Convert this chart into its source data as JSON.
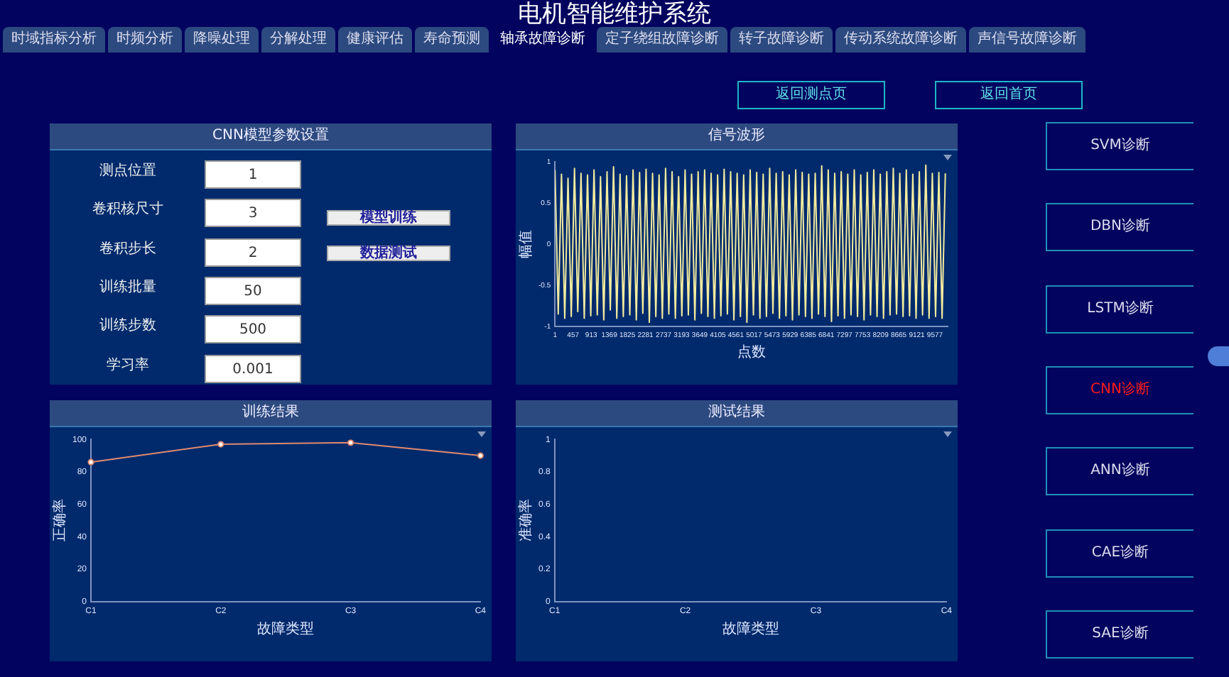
{
  "chart_data": [
    {
      "type": "other",
      "title": "电机智能维护系统",
      "annotations": [
        "时域指标分析",
        "时频分析",
        "降噪处理",
        "分解处理",
        "健康评估",
        "寿命预测",
        "轴承故障诊断",
        "定子绕组故障诊断",
        "转子故障诊断",
        "传动系统故障诊断",
        "声信号故障诊断",
        "返回测点页",
        "返回首页",
        "SVM诊断",
        "DBN诊断",
        "LSTM诊断",
        "CNN诊断",
        "ANN诊断",
        "CAE诊断",
        "SAE诊断"
      ]
    },
    {
      "type": "other",
      "title": "CNN模型参数设置",
      "annotations": [
        "测点位置",
        "1",
        "卷积核尺寸",
        "3",
        "卷积步长",
        "2",
        "训练批量",
        "50",
        "训练步数",
        "500",
        "学习率",
        "0.001",
        "模型训练",
        "数据测试"
      ]
    },
    {
      "type": "line",
      "title": "信号波形",
      "xlabel": "点数",
      "ylabel": "幅值",
      "xlim": [
        1,
        9900
      ],
      "ylim": [
        -1,
        1
      ],
      "xticks": [
        1,
        457,
        913,
        1369,
        1825,
        2281,
        2737,
        3193,
        3649,
        4105,
        4561,
        5017,
        5473,
        5929,
        6385,
        6841,
        7297,
        7753,
        8209,
        8665,
        9121,
        9577
      ],
      "yticks": [
        -1,
        -0.5,
        0,
        0.5,
        1
      ],
      "grid": false,
      "marker": "none",
      "series": [
        {
          "color": "#f3eb9e",
          "x": [
            1,
            83,
            165,
            247,
            329,
            411,
            493,
            575,
            657,
            739,
            821,
            903,
            985,
            1067,
            1149,
            1231,
            1313,
            1395,
            1477,
            1559,
            1641,
            1723,
            1805,
            1887,
            1969,
            2051,
            2133,
            2215,
            2297,
            2379,
            2461,
            2543,
            2625,
            2707,
            2789,
            2871,
            2953,
            3035,
            3117,
            3199,
            3281,
            3363,
            3445,
            3527,
            3609,
            3691,
            3773,
            3855,
            3937,
            4019,
            4101,
            4183,
            4265,
            4347,
            4429,
            4511,
            4593,
            4675,
            4757,
            4839,
            4921,
            5003,
            5085,
            5167,
            5249,
            5331,
            5413,
            5495,
            5577,
            5659,
            5741,
            5823,
            5905,
            5987,
            6069,
            6151,
            6233,
            6315,
            6397,
            6479,
            6561,
            6643,
            6725,
            6807,
            6889,
            6971,
            7053,
            7135,
            7217,
            7299,
            7381,
            7463,
            7545,
            7627,
            7709,
            7791,
            7873,
            7955,
            8037,
            8119,
            8201,
            8283,
            8365,
            8447,
            8529,
            8611,
            8693,
            8775,
            8857,
            8939,
            9021,
            9103,
            9185,
            9267,
            9349,
            9431,
            9513,
            9595,
            9677,
            9759,
            9841
          ],
          "values": [
            0.9,
            -0.85,
            0.85,
            -0.9,
            0.8,
            -0.88,
            0.92,
            -0.82,
            0.86,
            -0.9,
            0.84,
            -0.87,
            0.9,
            -0.86,
            0.82,
            -0.92,
            0.88,
            -0.8,
            0.94,
            -0.9,
            0.85,
            -0.88,
            0.83,
            -0.86,
            0.9,
            -0.92,
            0.87,
            -0.84,
            0.91,
            -0.95,
            0.86,
            -0.88,
            0.84,
            -0.9,
            0.92,
            -0.85,
            0.88,
            -0.9,
            0.82,
            -0.87,
            0.9,
            -0.86,
            0.85,
            -0.92,
            0.88,
            -0.84,
            0.9,
            -0.88,
            0.86,
            -0.9,
            0.84,
            -0.87,
            0.91,
            -0.85,
            0.88,
            -0.92,
            0.86,
            -0.88,
            0.84,
            -0.95,
            0.9,
            -0.86,
            0.87,
            -0.9,
            0.85,
            -0.88,
            0.92,
            -0.84,
            0.86,
            -0.9,
            0.88,
            -0.87,
            0.84,
            -0.92,
            0.9,
            -0.86,
            0.87,
            -0.88,
            0.85,
            -0.9,
            0.86,
            -0.85,
            0.95,
            -0.88,
            0.9,
            -0.94,
            0.86,
            -0.87,
            0.88,
            -0.9,
            0.85,
            -0.86,
            0.9,
            -0.88,
            0.84,
            -0.92,
            0.87,
            -0.86,
            0.9,
            -0.88,
            0.85,
            -0.9,
            0.88,
            -0.86,
            0.92,
            -0.85,
            0.86,
            -0.88,
            0.9,
            -0.87,
            0.85,
            -0.9,
            0.88,
            -0.86,
            0.96,
            -0.9,
            0.86,
            -0.88,
            0.87,
            -0.9,
            0.86
          ]
        }
      ]
    },
    {
      "type": "line",
      "title": "训练结果",
      "xlabel": "故障类型",
      "ylabel": "正确率",
      "categories": [
        "C1",
        "C2",
        "C3",
        "C4"
      ],
      "ylim": [
        0,
        100
      ],
      "yticks": [
        0,
        20,
        40,
        60,
        80,
        100
      ],
      "grid": false,
      "marker": "circle",
      "series": [
        {
          "color": "#e08a6e",
          "values": [
            86,
            97,
            98,
            90
          ]
        }
      ]
    },
    {
      "type": "line",
      "title": "测试结果",
      "xlabel": "故障类型",
      "ylabel": "准确率",
      "categories": [
        "C1",
        "C2",
        "C3",
        "C4"
      ],
      "ylim": [
        0,
        1
      ],
      "yticks": [
        0,
        0.2,
        0.4,
        0.6,
        0.8,
        1
      ],
      "grid": false,
      "marker": "circle",
      "series": [
        {
          "color": "#e08a6e",
          "values": [
            null,
            null,
            null,
            null
          ]
        }
      ]
    }
  ]
}
